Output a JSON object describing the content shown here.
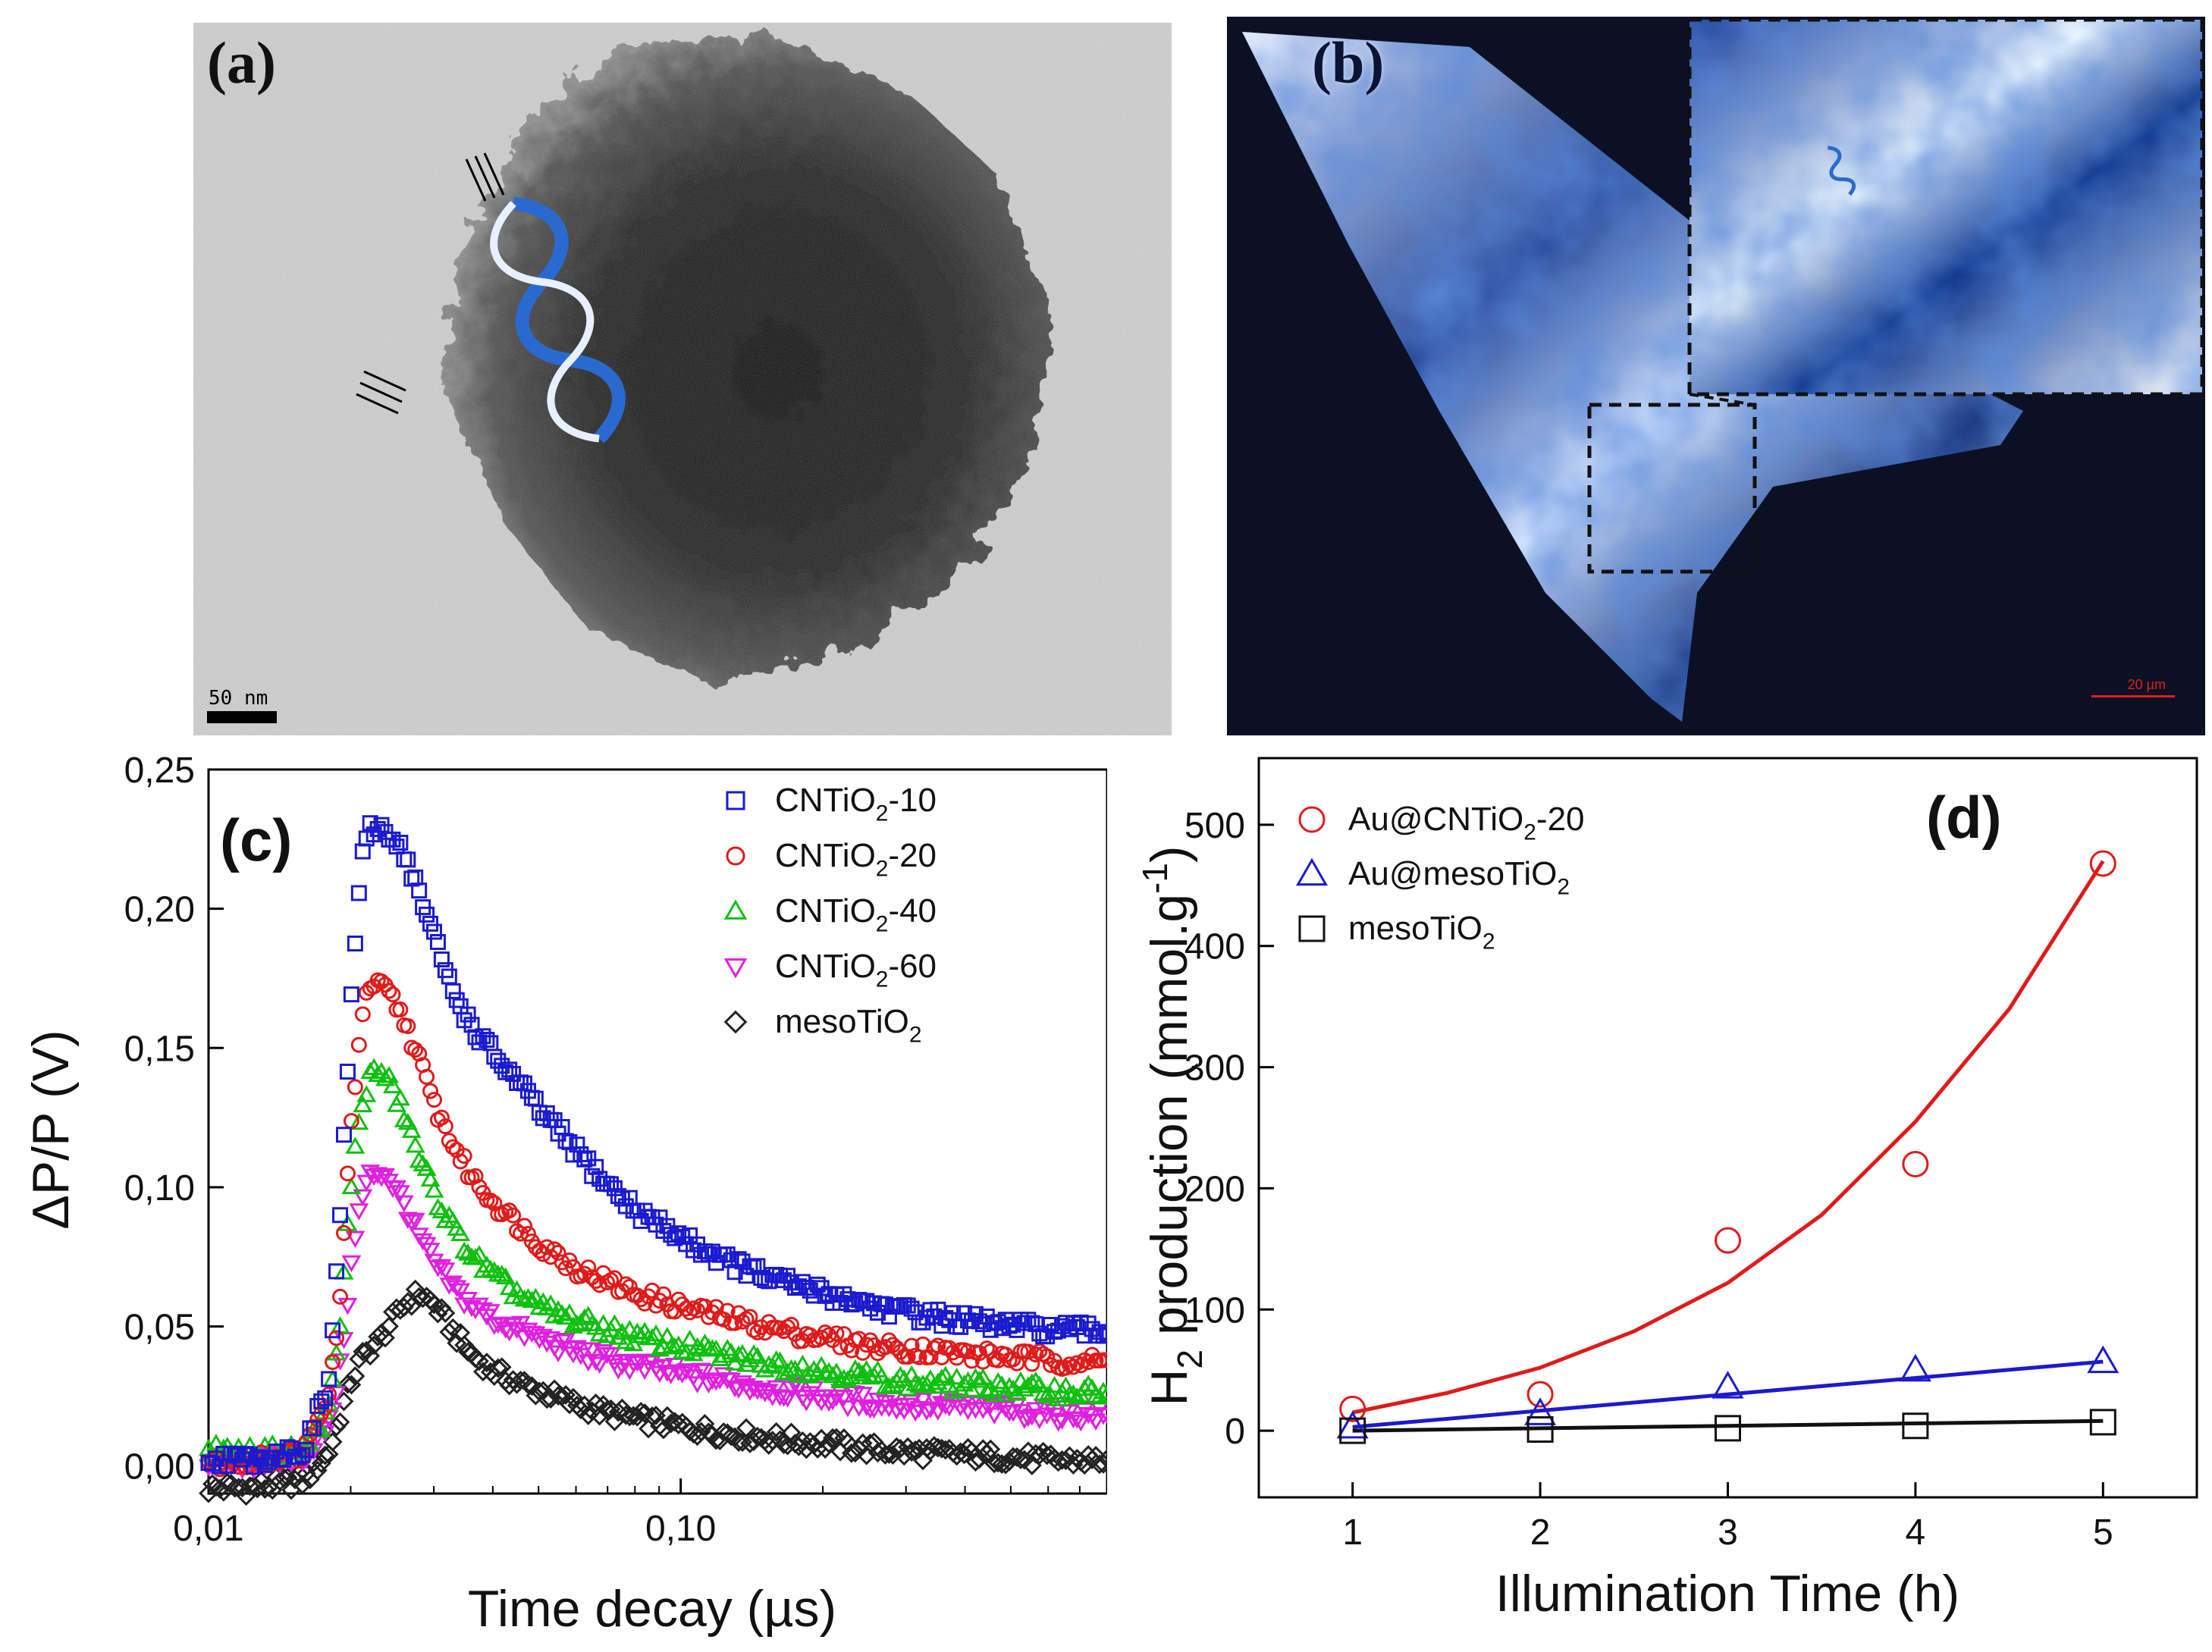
{
  "panel_a": {
    "label": "(a)",
    "scale_label": "50 nm"
  },
  "panel_b": {
    "label": "(b)",
    "scale_label": "20 µm"
  },
  "chart_data": [
    {
      "id": "c",
      "type": "scatter",
      "panel_label": "(c)",
      "xlabel": "Time decay (µs)",
      "ylabel": "ΔP/P (V)",
      "xscale": "log",
      "xlim": [
        0.01,
        0.8
      ],
      "ylim": [
        -0.01,
        0.25
      ],
      "xticks": [
        {
          "value": 0.01,
          "label": "0,01"
        },
        {
          "value": 0.1,
          "label": "0,10"
        }
      ],
      "yticks": [
        {
          "value": 0.0,
          "label": "0,00"
        },
        {
          "value": 0.05,
          "label": "0,05"
        },
        {
          "value": 0.1,
          "label": "0,10"
        },
        {
          "value": 0.15,
          "label": "0,15"
        },
        {
          "value": 0.2,
          "label": "0,20"
        },
        {
          "value": 0.25,
          "label": "0,25"
        }
      ],
      "legend_position": "top-right",
      "series": [
        {
          "name": "CNTiO2-10",
          "legend": {
            "main": "CNTiO",
            "sub": "2",
            "tail": "-10"
          },
          "marker": "square",
          "color": "#1a1ad0",
          "x": [
            0.01,
            0.012,
            0.014,
            0.016,
            0.018,
            0.019,
            0.02,
            0.021,
            0.022,
            0.023,
            0.024,
            0.026,
            0.028,
            0.03,
            0.033,
            0.036,
            0.04,
            0.045,
            0.05,
            0.06,
            0.07,
            0.08,
            0.1,
            0.12,
            0.15,
            0.2,
            0.25,
            0.3,
            0.4,
            0.5,
            0.6,
            0.8
          ],
          "y": [
            0.003,
            0.002,
            0.004,
            0.006,
            0.03,
            0.09,
            0.165,
            0.215,
            0.228,
            0.229,
            0.228,
            0.22,
            0.205,
            0.19,
            0.17,
            0.158,
            0.148,
            0.138,
            0.128,
            0.113,
            0.101,
            0.092,
            0.082,
            0.075,
            0.068,
            0.062,
            0.058,
            0.055,
            0.052,
            0.05,
            0.049,
            0.048
          ]
        },
        {
          "name": "CNTiO2-20",
          "legend": {
            "main": "CNTiO",
            "sub": "2",
            "tail": "-20"
          },
          "marker": "circle",
          "color": "#e01a1a",
          "x": [
            0.01,
            0.012,
            0.014,
            0.016,
            0.018,
            0.019,
            0.02,
            0.021,
            0.022,
            0.023,
            0.024,
            0.026,
            0.028,
            0.03,
            0.033,
            0.036,
            0.04,
            0.045,
            0.05,
            0.06,
            0.07,
            0.08,
            0.1,
            0.12,
            0.15,
            0.2,
            0.25,
            0.3,
            0.4,
            0.5,
            0.6,
            0.8
          ],
          "y": [
            0.002,
            0.001,
            0.003,
            0.005,
            0.025,
            0.06,
            0.12,
            0.16,
            0.172,
            0.172,
            0.17,
            0.16,
            0.145,
            0.13,
            0.115,
            0.104,
            0.095,
            0.087,
            0.08,
            0.071,
            0.066,
            0.062,
            0.057,
            0.054,
            0.05,
            0.046,
            0.043,
            0.042,
            0.04,
            0.039,
            0.038,
            0.037
          ]
        },
        {
          "name": "CNTiO2-40",
          "legend": {
            "main": "CNTiO",
            "sub": "2",
            "tail": "-40"
          },
          "marker": "triangle-up",
          "color": "#10c010",
          "x": [
            0.01,
            0.012,
            0.014,
            0.016,
            0.018,
            0.019,
            0.02,
            0.021,
            0.022,
            0.023,
            0.024,
            0.026,
            0.028,
            0.03,
            0.033,
            0.036,
            0.04,
            0.045,
            0.05,
            0.06,
            0.07,
            0.08,
            0.1,
            0.12,
            0.15,
            0.2,
            0.25,
            0.3,
            0.4,
            0.5,
            0.6,
            0.8
          ],
          "y": [
            0.006,
            0.004,
            0.005,
            0.006,
            0.02,
            0.05,
            0.1,
            0.128,
            0.14,
            0.142,
            0.138,
            0.126,
            0.11,
            0.098,
            0.085,
            0.076,
            0.068,
            0.062,
            0.057,
            0.052,
            0.049,
            0.046,
            0.043,
            0.04,
            0.037,
            0.034,
            0.032,
            0.03,
            0.029,
            0.028,
            0.027,
            0.026
          ]
        },
        {
          "name": "CNTiO2-60",
          "legend": {
            "main": "CNTiO",
            "sub": "2",
            "tail": "-60"
          },
          "marker": "triangle-down",
          "color": "#e020e0",
          "x": [
            0.01,
            0.012,
            0.014,
            0.016,
            0.018,
            0.019,
            0.02,
            0.021,
            0.022,
            0.023,
            0.024,
            0.026,
            0.028,
            0.03,
            0.033,
            0.036,
            0.04,
            0.045,
            0.05,
            0.06,
            0.07,
            0.08,
            0.1,
            0.12,
            0.15,
            0.2,
            0.25,
            0.3,
            0.4,
            0.5,
            0.6,
            0.8
          ],
          "y": [
            0.002,
            0.001,
            0.002,
            0.004,
            0.015,
            0.035,
            0.07,
            0.095,
            0.104,
            0.106,
            0.104,
            0.094,
            0.082,
            0.073,
            0.064,
            0.058,
            0.053,
            0.049,
            0.046,
            0.041,
            0.038,
            0.036,
            0.033,
            0.031,
            0.028,
            0.025,
            0.023,
            0.022,
            0.021,
            0.02,
            0.019,
            0.018
          ]
        },
        {
          "name": "mesoTiO2",
          "legend": {
            "main": "mesoTiO",
            "sub": "2",
            "tail": ""
          },
          "marker": "diamond",
          "color": "#222222",
          "x": [
            0.01,
            0.012,
            0.014,
            0.016,
            0.018,
            0.019,
            0.02,
            0.021,
            0.022,
            0.023,
            0.024,
            0.026,
            0.028,
            0.03,
            0.033,
            0.036,
            0.04,
            0.045,
            0.05,
            0.06,
            0.07,
            0.08,
            0.1,
            0.12,
            0.15,
            0.2,
            0.25,
            0.3,
            0.4,
            0.5,
            0.6,
            0.8
          ],
          "y": [
            -0.008,
            -0.008,
            -0.007,
            -0.005,
            0.005,
            0.018,
            0.03,
            0.038,
            0.042,
            0.045,
            0.05,
            0.058,
            0.062,
            0.058,
            0.048,
            0.04,
            0.034,
            0.03,
            0.027,
            0.022,
            0.019,
            0.017,
            0.014,
            0.012,
            0.01,
            0.008,
            0.006,
            0.005,
            0.004,
            0.003,
            0.002,
            0.002
          ]
        }
      ]
    },
    {
      "id": "d",
      "type": "scatter",
      "panel_label": "(d)",
      "xlabel": "Illumination Time (h)",
      "ylabel": {
        "main": "H",
        "sub": "2",
        "tail": " production (mmol.g",
        "sup": "-1",
        "close": ")"
      },
      "xlim": [
        0.5,
        5.5
      ],
      "ylim": [
        -55,
        555
      ],
      "xticks": [
        {
          "value": 1,
          "label": "1"
        },
        {
          "value": 2,
          "label": "2"
        },
        {
          "value": 3,
          "label": "3"
        },
        {
          "value": 4,
          "label": "4"
        },
        {
          "value": 5,
          "label": "5"
        }
      ],
      "yticks": [
        {
          "value": 0,
          "label": "0"
        },
        {
          "value": 100,
          "label": "100"
        },
        {
          "value": 200,
          "label": "200"
        },
        {
          "value": 300,
          "label": "300"
        },
        {
          "value": 400,
          "label": "400"
        },
        {
          "value": 500,
          "label": "500"
        }
      ],
      "legend_position": "top-left",
      "series": [
        {
          "name": "Au@CNTiO2-20",
          "legend": {
            "main": "Au@CNTiO",
            "sub": "2",
            "tail": "-20"
          },
          "marker": "circle",
          "color": "#e01a1a",
          "x": [
            1,
            2,
            3,
            4,
            5
          ],
          "y": [
            18,
            30,
            157,
            220,
            468
          ],
          "fit": {
            "kind": "exp",
            "x": [
              1,
              1.5,
              2,
              2.5,
              3,
              3.5,
              4,
              4.5,
              5
            ],
            "y": [
              15,
              31,
              52,
              82,
              122,
              178,
              255,
              348,
              470
            ]
          }
        },
        {
          "name": "Au@mesoTiO2",
          "legend": {
            "main": "Au@mesoTiO",
            "sub": "2",
            "tail": ""
          },
          "marker": "triangle-up",
          "color": "#1a1ad0",
          "x": [
            1,
            2,
            3,
            4,
            5
          ],
          "y": [
            3,
            14,
            36,
            50,
            57
          ],
          "fit": {
            "kind": "linear",
            "x": [
              1,
              5
            ],
            "y": [
              3,
              57
            ]
          }
        },
        {
          "name": "mesoTiO2",
          "legend": {
            "main": "mesoTiO",
            "sub": "2",
            "tail": ""
          },
          "marker": "square",
          "color": "#111111",
          "x": [
            1,
            2,
            3,
            4,
            5
          ],
          "y": [
            0,
            1,
            2,
            4,
            7
          ],
          "fit": {
            "kind": "linear",
            "x": [
              1,
              5
            ],
            "y": [
              0,
              8
            ]
          }
        }
      ]
    }
  ]
}
